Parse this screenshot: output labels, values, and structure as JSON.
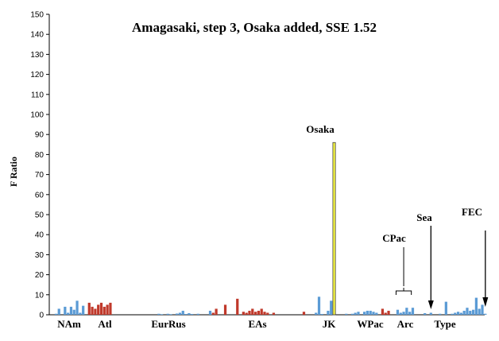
{
  "chart_data": {
    "type": "bar",
    "title": "Amagasaki, step 3, Osaka added, SSE 1.52",
    "ylabel": "F Ratio",
    "xlabel": "",
    "ylim": [
      0,
      150
    ],
    "yticks": [
      0,
      10,
      20,
      30,
      40,
      50,
      60,
      70,
      80,
      90,
      100,
      110,
      120,
      130,
      140,
      150
    ],
    "grid": false,
    "colors": {
      "blue": "#5b9bd5",
      "red": "#c0392b",
      "yellow": "#f5f542",
      "outline": "#404040"
    },
    "group_labels": [
      "NAm",
      "Atl",
      "EurRus",
      "EAs",
      "JK",
      "WPac",
      "Arc",
      "Type"
    ],
    "annotations": [
      "Osaka",
      "CPac",
      "Sea",
      "FEC"
    ],
    "series": [
      {
        "values": [
          {
            "x": 1,
            "v": 0.5,
            "c": "blue"
          },
          {
            "x": 2,
            "v": 3,
            "c": "blue"
          },
          {
            "x": 4,
            "v": 4,
            "c": "blue"
          },
          {
            "x": 5,
            "v": 1,
            "c": "blue"
          },
          {
            "x": 6,
            "v": 4,
            "c": "blue"
          },
          {
            "x": 7,
            "v": 2.5,
            "c": "blue"
          },
          {
            "x": 8,
            "v": 7,
            "c": "blue"
          },
          {
            "x": 9,
            "v": 1,
            "c": "blue"
          },
          {
            "x": 10,
            "v": 4.5,
            "c": "blue"
          },
          {
            "x": 12,
            "v": 6,
            "c": "red"
          },
          {
            "x": 13,
            "v": 4,
            "c": "red"
          },
          {
            "x": 14,
            "v": 3,
            "c": "red"
          },
          {
            "x": 15,
            "v": 5,
            "c": "red"
          },
          {
            "x": 16,
            "v": 6,
            "c": "red"
          },
          {
            "x": 17,
            "v": 4,
            "c": "red"
          },
          {
            "x": 18,
            "v": 5,
            "c": "red"
          },
          {
            "x": 19,
            "v": 6,
            "c": "red"
          },
          {
            "x": 35,
            "v": 0.5,
            "c": "blue"
          },
          {
            "x": 36,
            "v": 0.3,
            "c": "blue"
          },
          {
            "x": 38,
            "v": 0.5,
            "c": "blue"
          },
          {
            "x": 39,
            "v": 0.3,
            "c": "blue"
          },
          {
            "x": 41,
            "v": 0.6,
            "c": "blue"
          },
          {
            "x": 42,
            "v": 1,
            "c": "blue"
          },
          {
            "x": 43,
            "v": 2,
            "c": "blue"
          },
          {
            "x": 44,
            "v": 0.4,
            "c": "blue"
          },
          {
            "x": 45,
            "v": 0.8,
            "c": "blue"
          },
          {
            "x": 46,
            "v": 0.4,
            "c": "blue"
          },
          {
            "x": 48,
            "v": 0.5,
            "c": "blue"
          },
          {
            "x": 52,
            "v": 2,
            "c": "blue"
          },
          {
            "x": 53,
            "v": 1,
            "c": "red"
          },
          {
            "x": 54,
            "v": 3,
            "c": "red"
          },
          {
            "x": 57,
            "v": 5,
            "c": "red"
          },
          {
            "x": 61,
            "v": 8,
            "c": "red"
          },
          {
            "x": 63,
            "v": 1.5,
            "c": "red"
          },
          {
            "x": 64,
            "v": 1,
            "c": "red"
          },
          {
            "x": 65,
            "v": 2,
            "c": "red"
          },
          {
            "x": 66,
            "v": 3,
            "c": "red"
          },
          {
            "x": 67,
            "v": 1.5,
            "c": "red"
          },
          {
            "x": 68,
            "v": 2,
            "c": "red"
          },
          {
            "x": 69,
            "v": 3,
            "c": "red"
          },
          {
            "x": 70,
            "v": 1.5,
            "c": "red"
          },
          {
            "x": 71,
            "v": 1,
            "c": "red"
          },
          {
            "x": 73,
            "v": 1,
            "c": "red"
          },
          {
            "x": 83,
            "v": 1.5,
            "c": "red"
          },
          {
            "x": 87,
            "v": 1,
            "c": "blue"
          },
          {
            "x": 88,
            "v": 9,
            "c": "blue"
          },
          {
            "x": 89,
            "v": 0.4,
            "c": "blue"
          },
          {
            "x": 91,
            "v": 2,
            "c": "blue"
          },
          {
            "x": 92,
            "v": 7,
            "c": "blue"
          },
          {
            "x": 93,
            "v": 86,
            "c": "yellow"
          },
          {
            "x": 97,
            "v": 0.5,
            "c": "blue"
          },
          {
            "x": 99,
            "v": 0.5,
            "c": "blue"
          },
          {
            "x": 100,
            "v": 1,
            "c": "blue"
          },
          {
            "x": 101,
            "v": 1.5,
            "c": "blue"
          },
          {
            "x": 103,
            "v": 1.5,
            "c": "blue"
          },
          {
            "x": 104,
            "v": 2,
            "c": "blue"
          },
          {
            "x": 105,
            "v": 2,
            "c": "blue"
          },
          {
            "x": 106,
            "v": 1.5,
            "c": "blue"
          },
          {
            "x": 107,
            "v": 1,
            "c": "blue"
          },
          {
            "x": 109,
            "v": 3,
            "c": "red"
          },
          {
            "x": 110,
            "v": 1,
            "c": "red"
          },
          {
            "x": 111,
            "v": 2,
            "c": "red"
          },
          {
            "x": 114,
            "v": 2.5,
            "c": "blue"
          },
          {
            "x": 115,
            "v": 1,
            "c": "blue"
          },
          {
            "x": 116,
            "v": 1.5,
            "c": "blue"
          },
          {
            "x": 117,
            "v": 3.5,
            "c": "blue"
          },
          {
            "x": 118,
            "v": 1.5,
            "c": "blue"
          },
          {
            "x": 119,
            "v": 3.5,
            "c": "blue"
          },
          {
            "x": 123,
            "v": 0.8,
            "c": "blue"
          },
          {
            "x": 125,
            "v": 1,
            "c": "blue"
          },
          {
            "x": 128,
            "v": 0.5,
            "c": "blue"
          },
          {
            "x": 130,
            "v": 6.5,
            "c": "blue"
          },
          {
            "x": 132,
            "v": 0.5,
            "c": "blue"
          },
          {
            "x": 133,
            "v": 1,
            "c": "blue"
          },
          {
            "x": 134,
            "v": 1.5,
            "c": "blue"
          },
          {
            "x": 135,
            "v": 1,
            "c": "blue"
          },
          {
            "x": 136,
            "v": 2,
            "c": "blue"
          },
          {
            "x": 137,
            "v": 3.5,
            "c": "blue"
          },
          {
            "x": 138,
            "v": 2,
            "c": "blue"
          },
          {
            "x": 139,
            "v": 2.5,
            "c": "blue"
          },
          {
            "x": 140,
            "v": 8.5,
            "c": "blue"
          },
          {
            "x": 141,
            "v": 3,
            "c": "blue"
          },
          {
            "x": 142,
            "v": 5,
            "c": "blue"
          },
          {
            "x": 143,
            "v": 0.5,
            "c": "blue"
          }
        ]
      }
    ]
  }
}
